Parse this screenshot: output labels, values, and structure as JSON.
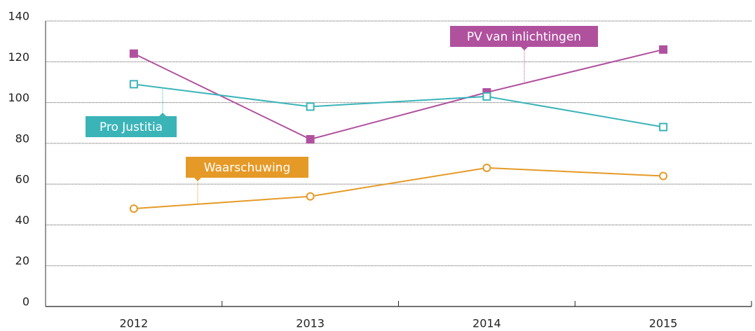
{
  "chart_data": {
    "type": "line",
    "categories": [
      "2012",
      "2013",
      "2014",
      "2015"
    ],
    "series": [
      {
        "name": "PV van inlichtingen",
        "color": "#b0519e",
        "marker": "filled-square",
        "values": [
          124,
          82,
          105,
          126
        ]
      },
      {
        "name": "Pro Justitia",
        "color": "#3bb4b8",
        "marker": "hollow-square",
        "values": [
          109,
          98,
          103,
          88
        ]
      },
      {
        "name": "Waarschuwing",
        "color": "#e59a27",
        "marker": "hollow-circle",
        "values": [
          48,
          54,
          68,
          64
        ]
      }
    ],
    "ylim": [
      0,
      140
    ],
    "yticks": [
      0,
      20,
      40,
      60,
      80,
      100,
      120,
      140
    ],
    "grid": true
  }
}
